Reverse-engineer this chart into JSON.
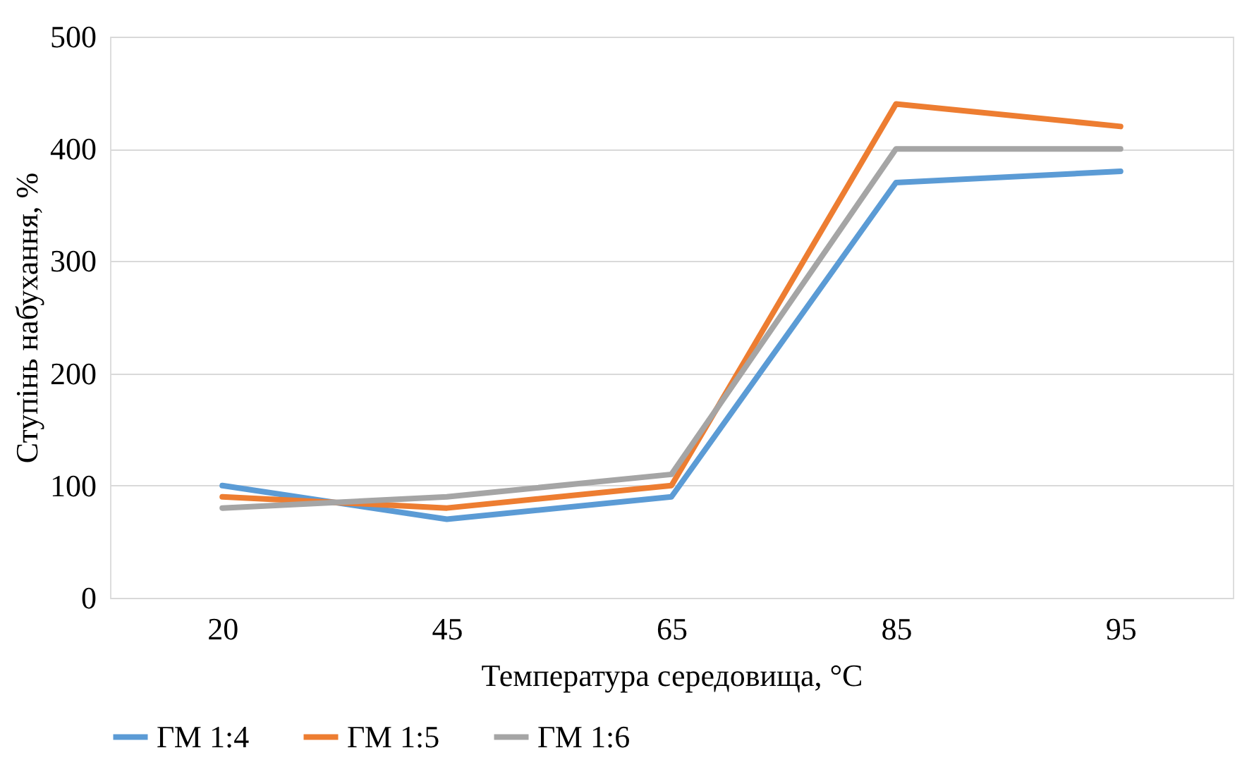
{
  "chart_data": {
    "type": "line",
    "xlabel": "Температура середовища, °C",
    "ylabel": "Ступінь набухання, %",
    "categories": [
      "20",
      "45",
      "65",
      "85",
      "95"
    ],
    "series": [
      {
        "name": "ГМ 1:4",
        "color": "#5b9bd5",
        "values": [
          100,
          70,
          90,
          370,
          380
        ]
      },
      {
        "name": "ГМ 1:5",
        "color": "#ed7d31",
        "values": [
          90,
          80,
          100,
          440,
          420
        ]
      },
      {
        "name": "ГМ 1:6",
        "color": "#a5a5a5",
        "values": [
          80,
          90,
          110,
          400,
          400
        ]
      }
    ],
    "ylim": [
      0,
      500
    ],
    "yticks": [
      0,
      100,
      200,
      300,
      400,
      500
    ],
    "grid": "y",
    "legend": "bottom",
    "marker": "none",
    "line_style": "solid"
  }
}
